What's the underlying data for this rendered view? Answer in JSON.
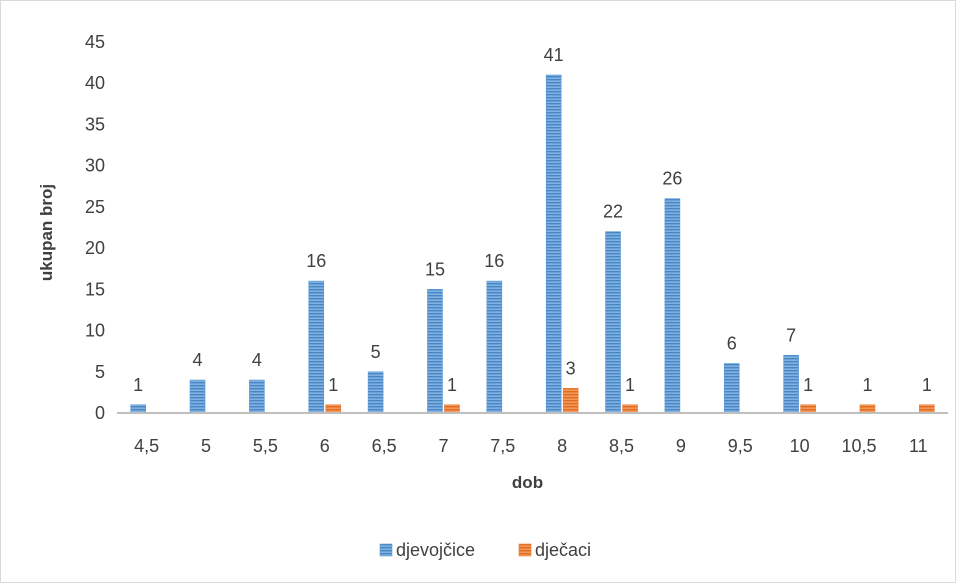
{
  "chart_data": {
    "type": "bar",
    "xlabel": "dob",
    "ylabel": "ukupan broj",
    "ylim": [
      0,
      45
    ],
    "y_ticks": [
      "0",
      "5",
      "10",
      "15",
      "20",
      "25",
      "30",
      "35",
      "40",
      "45"
    ],
    "categories": [
      "4,5",
      "5",
      "5,5",
      "6",
      "6,5",
      "7",
      "7,5",
      "8",
      "8,5",
      "9",
      "9,5",
      "10",
      "10,5",
      "11"
    ],
    "series": [
      {
        "name": "djevojčice",
        "color": "#5b9bd5",
        "values": [
          1,
          4,
          4,
          16,
          5,
          15,
          16,
          41,
          22,
          26,
          6,
          7,
          null,
          null
        ]
      },
      {
        "name": "dječaci",
        "color": "#ed7d31",
        "values": [
          null,
          null,
          null,
          1,
          null,
          1,
          null,
          3,
          1,
          null,
          null,
          1,
          1,
          1
        ]
      }
    ],
    "grid": false,
    "legend_position": "bottom"
  }
}
